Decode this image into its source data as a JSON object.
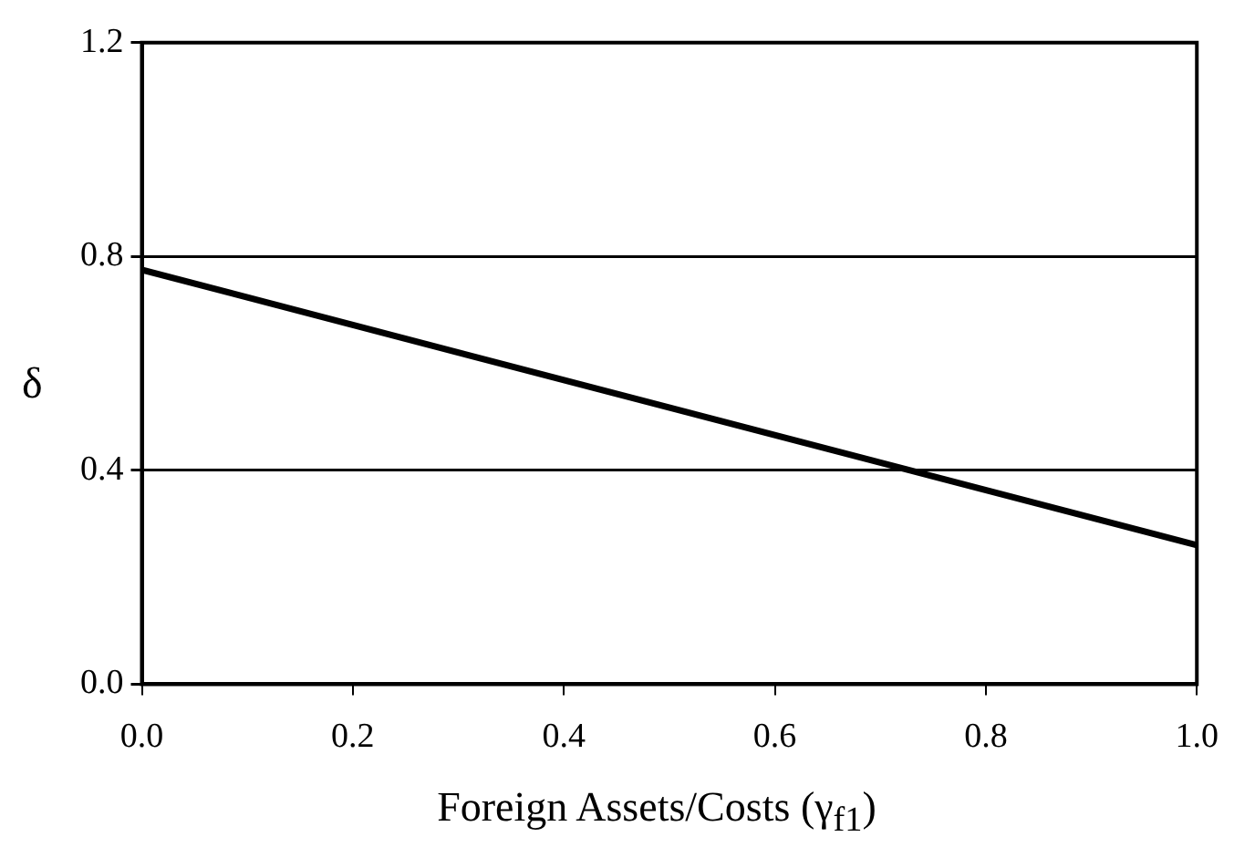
{
  "chart_data": {
    "type": "line",
    "xlabel": "Foreign Assets/Costs (γ$_{f1}$)",
    "ylabel": "δ",
    "x": [
      0,
      1
    ],
    "series": [
      {
        "color": "#000000",
        "values": [
          0.775,
          0.26
        ]
      }
    ],
    "xlim": [
      0,
      1
    ],
    "xticks": [
      {
        "value": 0,
        "label": "0.0"
      },
      0.2,
      0.4,
      0.6,
      0.8,
      {
        "value": 1,
        "label": "1.0"
      }
    ],
    "ylim": [
      0,
      1.2
    ],
    "yticks": [
      {
        "value": 0,
        "label": "0.0"
      },
      0.4,
      0.8,
      1.2
    ],
    "grid": "y",
    "legend": false,
    "marker": "none",
    "line_style": "solid"
  }
}
